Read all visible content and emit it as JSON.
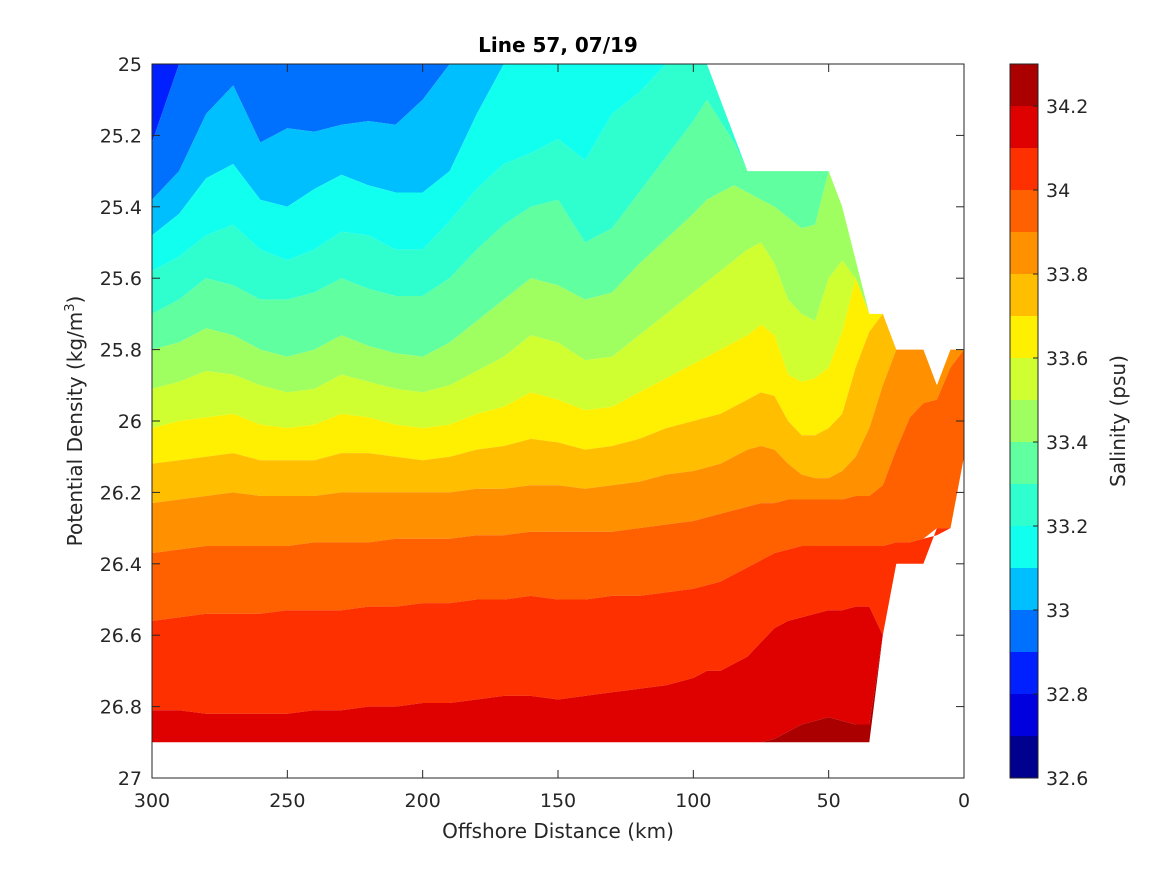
{
  "chart_data": {
    "type": "filled-contour",
    "title": "Line 57, 07/19",
    "xlabel": "Offshore Distance (km)",
    "ylabel": "Potential Density (kg/m",
    "ylabel_superscript": "3",
    "ylabel_close": ")",
    "colorbar_label": "Salinity (psu)",
    "x_axis": {
      "xlim": [
        300,
        0
      ],
      "reversed": true,
      "ticks": [
        300,
        250,
        200,
        150,
        100,
        50,
        0
      ],
      "tick_labels": [
        "300",
        "250",
        "200",
        "150",
        "100",
        "50",
        "0"
      ]
    },
    "y_axis": {
      "ylim": [
        25,
        27
      ],
      "reversed": true,
      "ticks": [
        25,
        25.2,
        25.4,
        25.6,
        25.8,
        26,
        26.2,
        26.4,
        26.6,
        26.8,
        27
      ],
      "tick_labels": [
        "25",
        "25.2",
        "25.4",
        "25.6",
        "25.8",
        "26",
        "26.2",
        "26.4",
        "26.6",
        "26.8",
        "27"
      ]
    },
    "colorbar": {
      "range": [
        32.6,
        34.3
      ],
      "ticks": [
        32.6,
        32.8,
        33.0,
        33.2,
        33.4,
        33.6,
        33.8,
        34.0,
        34.2
      ],
      "tick_labels": [
        "32.6",
        "32.8",
        "33",
        "33.2",
        "33.4",
        "33.6",
        "33.8",
        "34",
        "34.2"
      ],
      "levels": [
        32.6,
        32.7,
        32.8,
        32.9,
        33.0,
        33.1,
        33.2,
        33.3,
        33.4,
        33.5,
        33.6,
        33.7,
        33.8,
        33.9,
        34.0,
        34.1,
        34.2,
        34.3
      ],
      "colors": [
        "#00008f",
        "#0000df",
        "#0020ff",
        "#0070ff",
        "#00bfff",
        "#10ffef",
        "#2fffcf",
        "#60ff9f",
        "#9fff60",
        "#cfff30",
        "#ffef00",
        "#ffbf00",
        "#ff9000",
        "#ff6000",
        "#ff3000",
        "#df0000",
        "#aa0000"
      ]
    },
    "data_coverage": {
      "x": [
        300,
        290,
        280,
        270,
        260,
        250,
        240,
        230,
        220,
        210,
        200,
        190,
        180,
        170,
        160,
        150,
        140,
        130,
        120,
        110,
        100,
        95,
        90,
        85,
        80,
        75,
        70,
        65,
        60,
        55,
        50,
        45,
        40,
        35,
        30,
        25,
        20,
        15,
        10,
        5,
        0
      ],
      "top_density": [
        25,
        25,
        25,
        25,
        25,
        25,
        25,
        25,
        25,
        25,
        25,
        25,
        25,
        25,
        25,
        25,
        25,
        25,
        25,
        25,
        25,
        25,
        25.1,
        25.2,
        25.3,
        25.3,
        25.3,
        25.3,
        25.3,
        25.3,
        25.3,
        25.4,
        25.55,
        25.7,
        25.7,
        25.8,
        25.8,
        25.8,
        25.9,
        25.8,
        25.8
      ],
      "bottom_density": [
        26.9,
        26.9,
        26.9,
        26.9,
        26.9,
        26.9,
        26.9,
        26.9,
        26.9,
        26.9,
        26.9,
        26.9,
        26.9,
        26.9,
        26.9,
        26.9,
        26.9,
        26.9,
        26.9,
        26.9,
        26.9,
        26.9,
        26.9,
        26.9,
        26.9,
        26.9,
        26.9,
        26.9,
        26.9,
        26.9,
        26.9,
        26.9,
        26.9,
        26.9,
        26.6,
        26.4,
        26.4,
        26.4,
        26.3,
        26.3,
        26.1
      ]
    },
    "salinity_contours": {
      "note": "density at which each salinity level is reached, per x station",
      "x": [
        300,
        290,
        280,
        270,
        260,
        250,
        240,
        230,
        220,
        210,
        200,
        190,
        180,
        170,
        160,
        150,
        140,
        130,
        120,
        110,
        100,
        95,
        90,
        85,
        80,
        75,
        70,
        65,
        60,
        55,
        50,
        45,
        40,
        35,
        30,
        25,
        20,
        15,
        10,
        5,
        0
      ],
      "levels": [
        {
          "salinity": 32.9,
          "density": [
            25.22,
            25.0,
            25.0,
            25.0,
            25.0,
            25.0,
            25.0,
            25.0,
            25.0,
            25.0,
            25.0,
            25.0,
            25.0,
            25.0,
            25.0,
            25.0,
            25.0,
            25.0,
            25.0,
            25.0,
            25.0,
            25.0,
            25.0,
            25.0,
            25.0,
            25.0,
            25.0,
            25.0,
            25.0,
            25.0,
            25.0,
            25.0,
            25.0,
            25.0,
            25.0,
            25.0,
            25.0,
            25.0,
            25.0,
            25.0,
            25.0
          ]
        },
        {
          "salinity": 33.0,
          "density": [
            25.38,
            25.3,
            25.14,
            25.06,
            25.22,
            25.18,
            25.19,
            25.17,
            25.16,
            25.17,
            25.1,
            25.0,
            25.0,
            25.0,
            25.0,
            25.0,
            25.0,
            25.0,
            25.0,
            25.0,
            25.0,
            25.0,
            25.0,
            25.0,
            25.0,
            25.0,
            25.0,
            25.0,
            25.0,
            25.0,
            25.0,
            25.0,
            25.0,
            25.0,
            25.0,
            25.0,
            25.0,
            25.0,
            25.0,
            25.0,
            25.0
          ]
        },
        {
          "salinity": 33.1,
          "density": [
            25.48,
            25.42,
            25.32,
            25.28,
            25.38,
            25.4,
            25.35,
            25.31,
            25.34,
            25.36,
            25.36,
            25.3,
            25.14,
            25.0,
            25.0,
            25.0,
            25.0,
            25.0,
            25.0,
            25.0,
            25.0,
            25.0,
            25.0,
            25.0,
            25.0,
            25.0,
            25.0,
            25.0,
            25.0,
            25.0,
            25.0,
            25.0,
            25.0,
            25.0,
            25.0,
            25.0,
            25.0,
            25.0,
            25.0,
            25.0,
            25.0
          ]
        },
        {
          "salinity": 33.2,
          "density": [
            25.58,
            25.54,
            25.48,
            25.45,
            25.52,
            25.55,
            25.52,
            25.47,
            25.48,
            25.52,
            25.52,
            25.44,
            25.35,
            25.28,
            25.25,
            25.21,
            25.27,
            25.14,
            25.08,
            25.0,
            25.0,
            25.0,
            25.0,
            25.0,
            25.0,
            25.0,
            25.0,
            25.0,
            25.0,
            25.0,
            25.0,
            25.0,
            25.0,
            25.0,
            25.0,
            25.0,
            25.0,
            25.0,
            25.0,
            25.0,
            25.0
          ]
        },
        {
          "salinity": 33.3,
          "density": [
            25.7,
            25.66,
            25.6,
            25.62,
            25.66,
            25.66,
            25.64,
            25.6,
            25.63,
            25.65,
            25.65,
            25.6,
            25.52,
            25.45,
            25.4,
            25.38,
            25.5,
            25.46,
            25.36,
            25.26,
            25.16,
            25.1,
            25.16,
            25.22,
            25.3,
            25.3,
            25.3,
            25.3,
            25.3,
            25.3,
            25.3,
            25.3,
            25.3,
            25.3,
            25.3,
            25.3,
            25.3,
            25.3,
            25.3,
            25.3,
            25.3
          ]
        },
        {
          "salinity": 33.4,
          "density": [
            25.8,
            25.78,
            25.74,
            25.76,
            25.8,
            25.82,
            25.8,
            25.76,
            25.79,
            25.81,
            25.82,
            25.78,
            25.72,
            25.66,
            25.6,
            25.62,
            25.66,
            25.64,
            25.56,
            25.49,
            25.42,
            25.38,
            25.36,
            25.34,
            25.36,
            25.38,
            25.4,
            25.43,
            25.46,
            25.45,
            25.3,
            25.4,
            25.55,
            25.7,
            25.7,
            25.8,
            25.8,
            25.8,
            25.9,
            25.8,
            25.8
          ]
        },
        {
          "salinity": 33.5,
          "density": [
            25.91,
            25.89,
            25.86,
            25.87,
            25.9,
            25.92,
            25.91,
            25.87,
            25.89,
            25.91,
            25.92,
            25.9,
            25.86,
            25.82,
            25.76,
            25.78,
            25.83,
            25.82,
            25.76,
            25.7,
            25.64,
            25.61,
            25.58,
            25.55,
            25.52,
            25.5,
            25.56,
            25.66,
            25.7,
            25.72,
            25.6,
            25.55,
            25.6,
            25.7,
            25.7,
            25.8,
            25.8,
            25.8,
            25.9,
            25.8,
            25.8
          ]
        },
        {
          "salinity": 33.6,
          "density": [
            26.02,
            26.0,
            25.99,
            25.98,
            26.01,
            26.02,
            26.01,
            25.98,
            25.99,
            26.01,
            26.02,
            26.01,
            25.98,
            25.96,
            25.92,
            25.94,
            25.97,
            25.96,
            25.92,
            25.88,
            25.84,
            25.82,
            25.8,
            25.78,
            25.76,
            25.73,
            25.76,
            25.87,
            25.89,
            25.88,
            25.85,
            25.75,
            25.6,
            25.7,
            25.7,
            25.8,
            25.8,
            25.8,
            25.9,
            25.8,
            25.8
          ]
        },
        {
          "salinity": 33.7,
          "density": [
            26.12,
            26.11,
            26.1,
            26.09,
            26.11,
            26.11,
            26.11,
            26.09,
            26.09,
            26.1,
            26.11,
            26.1,
            26.08,
            26.07,
            26.05,
            26.06,
            26.08,
            26.07,
            26.05,
            26.02,
            26.0,
            25.99,
            25.98,
            25.96,
            25.94,
            25.92,
            25.93,
            26.0,
            26.04,
            26.04,
            26.02,
            25.98,
            25.85,
            25.75,
            25.7,
            25.8,
            25.8,
            25.8,
            25.9,
            25.8,
            25.8
          ]
        },
        {
          "salinity": 33.8,
          "density": [
            26.23,
            26.22,
            26.21,
            26.2,
            26.21,
            26.21,
            26.21,
            26.2,
            26.2,
            26.2,
            26.2,
            26.2,
            26.19,
            26.19,
            26.18,
            26.18,
            26.19,
            26.18,
            26.17,
            26.15,
            26.14,
            26.13,
            26.12,
            26.1,
            26.08,
            26.07,
            26.08,
            26.12,
            26.15,
            26.16,
            26.16,
            26.14,
            26.1,
            26.02,
            25.9,
            25.8,
            25.8,
            25.8,
            25.9,
            25.8,
            25.8
          ]
        },
        {
          "salinity": 33.9,
          "density": [
            26.37,
            26.36,
            26.35,
            26.35,
            26.35,
            26.35,
            26.34,
            26.34,
            26.34,
            26.33,
            26.33,
            26.33,
            26.32,
            26.32,
            26.31,
            26.31,
            26.31,
            26.31,
            26.3,
            26.29,
            26.28,
            26.27,
            26.26,
            26.25,
            26.24,
            26.23,
            26.23,
            26.22,
            26.22,
            26.22,
            26.22,
            26.22,
            26.21,
            26.21,
            26.18,
            26.08,
            25.99,
            25.95,
            25.94,
            25.85,
            25.8
          ]
        },
        {
          "salinity": 34.0,
          "density": [
            26.56,
            26.55,
            26.54,
            26.54,
            26.54,
            26.53,
            26.53,
            26.53,
            26.52,
            26.52,
            26.51,
            26.51,
            26.5,
            26.5,
            26.49,
            26.5,
            26.5,
            26.49,
            26.49,
            26.48,
            26.47,
            26.46,
            26.45,
            26.43,
            26.41,
            26.39,
            26.37,
            26.36,
            26.35,
            26.35,
            26.35,
            26.35,
            26.35,
            26.35,
            26.35,
            26.34,
            26.34,
            26.33,
            26.32,
            26.3,
            26.1
          ]
        },
        {
          "salinity": 34.1,
          "density": [
            26.81,
            26.81,
            26.82,
            26.82,
            26.82,
            26.82,
            26.81,
            26.81,
            26.8,
            26.8,
            26.79,
            26.79,
            26.78,
            26.77,
            26.77,
            26.78,
            26.77,
            26.76,
            26.75,
            26.74,
            26.72,
            26.7,
            26.7,
            26.68,
            26.66,
            26.62,
            26.58,
            26.56,
            26.55,
            26.54,
            26.53,
            26.53,
            26.52,
            26.52,
            26.6,
            26.4,
            26.4,
            26.4,
            26.3,
            26.3,
            26.1
          ]
        },
        {
          "salinity": 34.2,
          "density": [
            26.9,
            26.9,
            26.9,
            26.9,
            26.9,
            26.9,
            26.9,
            26.9,
            26.9,
            26.9,
            26.9,
            26.9,
            26.9,
            26.9,
            26.9,
            26.9,
            26.9,
            26.9,
            26.9,
            26.9,
            26.9,
            26.9,
            26.9,
            26.9,
            26.9,
            26.9,
            26.89,
            26.87,
            26.85,
            26.84,
            26.83,
            26.84,
            26.85,
            26.85,
            26.6,
            26.4,
            26.4,
            26.4,
            26.3,
            26.3,
            26.1
          ]
        }
      ]
    }
  }
}
